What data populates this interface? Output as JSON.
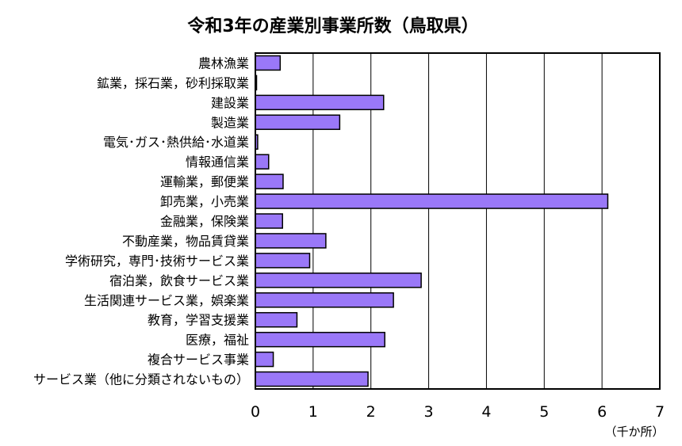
{
  "chart_data": {
    "type": "bar",
    "orientation": "horizontal",
    "title": "令和3年の産業別事業所数（鳥取県）",
    "unit_label": "（千か所）",
    "categories": [
      "農林漁業",
      "鉱業，採石業，砂利採取業",
      "建設業",
      "製造業",
      "電気･ガス･熱供給･水道業",
      "情報通信業",
      "運輸業，郵便業",
      "卸売業，小売業",
      "金融業，保険業",
      "不動産業，物品賃貸業",
      "学術研究，専門･技術サービス業",
      "宿泊業，飲食サービス業",
      "生活関連サービス業，娯楽業",
      "教育，学習支援業",
      "医療，福祉",
      "複合サービス事業",
      "サービス業（他に分類されないもの）"
    ],
    "values": [
      0.43,
      0.02,
      2.22,
      1.46,
      0.04,
      0.23,
      0.48,
      6.1,
      0.47,
      1.22,
      0.94,
      2.87,
      2.39,
      0.72,
      2.24,
      0.31,
      1.95
    ],
    "xlim": [
      0,
      7
    ],
    "xticks": [
      "0",
      "1",
      "2",
      "3",
      "4",
      "5",
      "6",
      "7"
    ],
    "grid": true,
    "colors": {
      "bar_fill": "#9a78f8",
      "bar_stroke": "#000000",
      "grid": "#000000"
    }
  }
}
